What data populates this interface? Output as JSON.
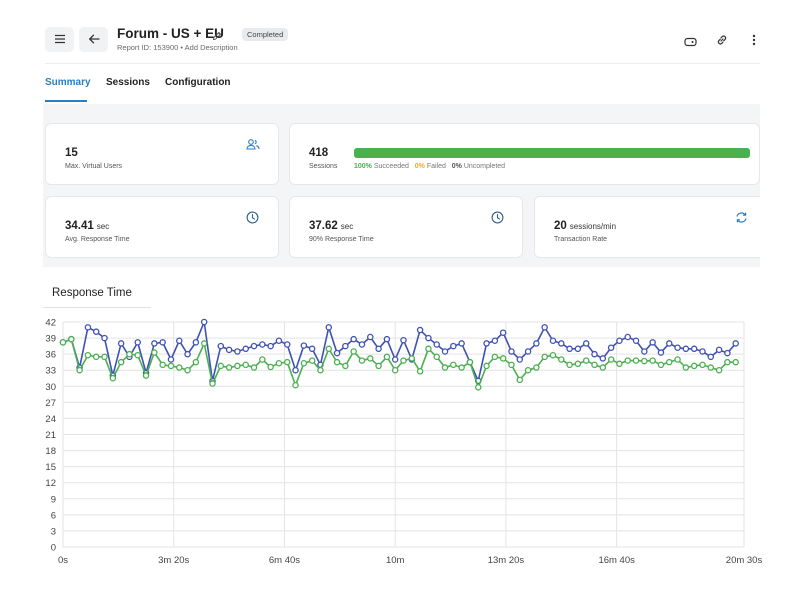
{
  "header": {
    "title": "Forum - US + EU",
    "status_badge": "Completed",
    "subtitle": "Report ID: 153900 • Add Description",
    "icons": {
      "menu": "menu-icon",
      "back": "arrow-left-icon",
      "edit": "pencil-icon",
      "tag": "tag-icon",
      "link": "link-icon",
      "more": "more-vertical-icon"
    }
  },
  "tabs": [
    {
      "label": "Summary",
      "active": true
    },
    {
      "label": "Sessions",
      "active": false
    },
    {
      "label": "Configuration",
      "active": false
    }
  ],
  "summary": {
    "max_vu": {
      "value": "15",
      "label": "Max. Virtual Users",
      "icon": "users-icon"
    },
    "sessions": {
      "value": "418",
      "label": "Sessions",
      "succeeded_pct": "100%",
      "succeeded_label": "Succeeded",
      "failed_pct": "0%",
      "failed_label": "Failed",
      "uncompleted_pct": "0%",
      "uncompleted_label": "Uncompleted",
      "progress_fraction": 1.0
    },
    "avg_response": {
      "value": "34.41",
      "unit": "sec",
      "label": "Avg. Response Time",
      "icon": "clock-icon"
    },
    "p90_response": {
      "value": "37.62",
      "unit": "sec",
      "label": "90% Response Time",
      "icon": "clock-icon"
    },
    "transaction_rate": {
      "value": "20",
      "unit": "sessions/min",
      "label": "Transaction Rate",
      "icon": "refresh-icon"
    }
  },
  "colors": {
    "accent": "#2a7ec2",
    "success": "#4caf50",
    "warning": "#f5a623",
    "series_blue": "#3f51b5",
    "series_green": "#4caf50"
  },
  "chart_section": {
    "title": "Response Time"
  },
  "chart_data": {
    "type": "line",
    "title": "Response Time",
    "xlabel": "",
    "ylabel": "",
    "x_tick_labels": [
      "0s",
      "3m 20s",
      "6m 40s",
      "10m",
      "13m 20s",
      "16m 40s",
      "20m 30s"
    ],
    "x_tick_seconds": [
      0,
      200,
      400,
      600,
      800,
      1000,
      1230
    ],
    "xlim_seconds": [
      0,
      1230
    ],
    "y_ticks": [
      0,
      3,
      6,
      9,
      12,
      15,
      18,
      21,
      24,
      27,
      30,
      33,
      36,
      39,
      42
    ],
    "ylim": [
      0,
      42
    ],
    "grid": true,
    "legend": "none",
    "x_seconds": [
      0,
      15,
      30,
      45,
      60,
      75,
      90,
      105,
      120,
      135,
      150,
      165,
      180,
      195,
      210,
      225,
      240,
      255,
      270,
      285,
      300,
      315,
      330,
      345,
      360,
      375,
      390,
      405,
      420,
      435,
      450,
      465,
      480,
      495,
      510,
      525,
      540,
      555,
      570,
      585,
      600,
      615,
      630,
      645,
      660,
      675,
      690,
      705,
      720,
      735,
      750,
      765,
      780,
      795,
      810,
      825,
      840,
      855,
      870,
      885,
      900,
      915,
      930,
      945,
      960,
      975,
      990,
      1005,
      1020,
      1035,
      1050,
      1065,
      1080,
      1095,
      1110,
      1125,
      1140,
      1155,
      1170,
      1185,
      1200,
      1215
    ],
    "series": [
      {
        "color": "#3f51b5",
        "values": [
          38.2,
          38.8,
          33.5,
          41.0,
          40.2,
          39.0,
          32.0,
          38.0,
          35.5,
          38.2,
          32.5,
          38.0,
          38.2,
          35.0,
          38.5,
          36.0,
          38.2,
          42.0,
          31.0,
          37.5,
          36.8,
          36.5,
          37.0,
          37.5,
          37.8,
          37.5,
          38.5,
          37.8,
          33.0,
          37.6,
          37.0,
          34.0,
          41.0,
          36.2,
          37.5,
          38.8,
          37.8,
          39.2,
          37.0,
          38.8,
          35.0,
          38.6,
          35.0,
          40.5,
          39.0,
          37.8,
          36.5,
          37.5,
          38.0,
          34.5,
          31.0,
          38.0,
          38.5,
          40.0,
          36.5,
          35.0,
          36.5,
          38.0,
          41.0,
          38.5,
          38.0,
          37.0,
          37.0,
          38.0,
          36.0,
          35.2,
          37.2,
          38.5,
          39.2,
          38.5,
          36.5,
          38.2,
          36.3,
          38.0,
          37.2,
          37.0,
          37.0,
          36.5,
          35.5,
          36.8,
          36.2,
          38.0
        ]
      },
      {
        "color": "#4caf50",
        "values": [
          38.2,
          38.8,
          33.0,
          35.8,
          35.5,
          35.5,
          31.5,
          34.5,
          36.0,
          35.8,
          32.0,
          36.3,
          34.0,
          33.8,
          33.5,
          33.0,
          34.5,
          38.0,
          30.5,
          33.8,
          33.5,
          33.8,
          34.0,
          33.5,
          35.0,
          33.6,
          34.3,
          34.5,
          30.2,
          34.3,
          34.8,
          33.0,
          37.0,
          34.5,
          33.8,
          36.5,
          34.8,
          35.2,
          33.8,
          35.5,
          33.0,
          34.8,
          35.2,
          32.8,
          37.0,
          35.5,
          33.5,
          34.0,
          33.5,
          34.5,
          29.8,
          33.8,
          35.5,
          35.2,
          34.0,
          31.2,
          33.0,
          33.5,
          35.5,
          35.8,
          35.0,
          34.0,
          34.2,
          34.8,
          34.0,
          33.5,
          35.0,
          34.2,
          34.8,
          34.8,
          34.7,
          34.8,
          34.0,
          34.5,
          35.0,
          33.5,
          33.8,
          34.0,
          33.5,
          33.0,
          34.5,
          34.5
        ]
      }
    ]
  }
}
